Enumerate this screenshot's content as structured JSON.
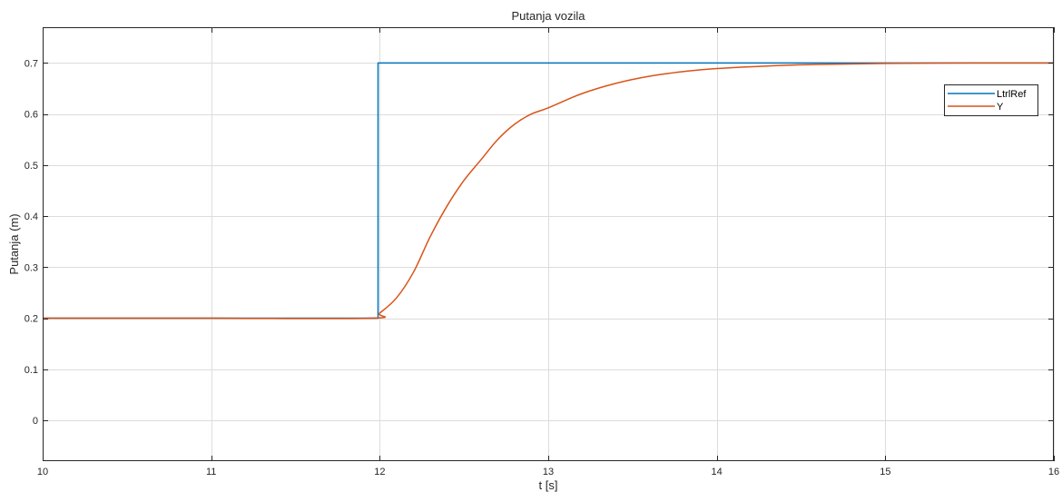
{
  "chart_data": {
    "type": "line",
    "title": "Putanja vozila",
    "xlabel": "t [s]",
    "ylabel": "Putanja (m)",
    "xlim": [
      10,
      16
    ],
    "ylim": [
      -0.08,
      0.77
    ],
    "x_ticks": [
      10,
      11,
      12,
      13,
      14,
      15,
      16
    ],
    "y_ticks": [
      0,
      0.1,
      0.2,
      0.3,
      0.4,
      0.5,
      0.6,
      0.7
    ],
    "x_tick_labels": [
      "10",
      "11",
      "12",
      "13",
      "14",
      "15",
      "16"
    ],
    "y_tick_labels": [
      "0",
      "0.1",
      "0.2",
      "0.3",
      "0.4",
      "0.5",
      "0.6",
      "0.7"
    ],
    "grid": true,
    "legend_position": "top-right",
    "series": [
      {
        "name": "LtrlRef",
        "color": "#0072BD",
        "x": [
          10,
          11.99,
          11.99,
          16
        ],
        "y": [
          0.2,
          0.2,
          0.7,
          0.7
        ]
      },
      {
        "name": "Y",
        "color": "#D95319",
        "x": [
          10,
          11.0,
          11.95,
          12.0,
          12.1,
          12.2,
          12.3,
          12.4,
          12.5,
          12.6,
          12.7,
          12.8,
          12.9,
          13.0,
          13.2,
          13.4,
          13.6,
          13.8,
          14.0,
          14.3,
          14.6,
          15.0,
          15.5,
          16.0
        ],
        "y": [
          0.2,
          0.2,
          0.2,
          0.21,
          0.24,
          0.29,
          0.36,
          0.42,
          0.47,
          0.51,
          0.55,
          0.58,
          0.6,
          0.612,
          0.64,
          0.66,
          0.674,
          0.683,
          0.689,
          0.694,
          0.697,
          0.699,
          0.7,
          0.7
        ]
      }
    ]
  }
}
